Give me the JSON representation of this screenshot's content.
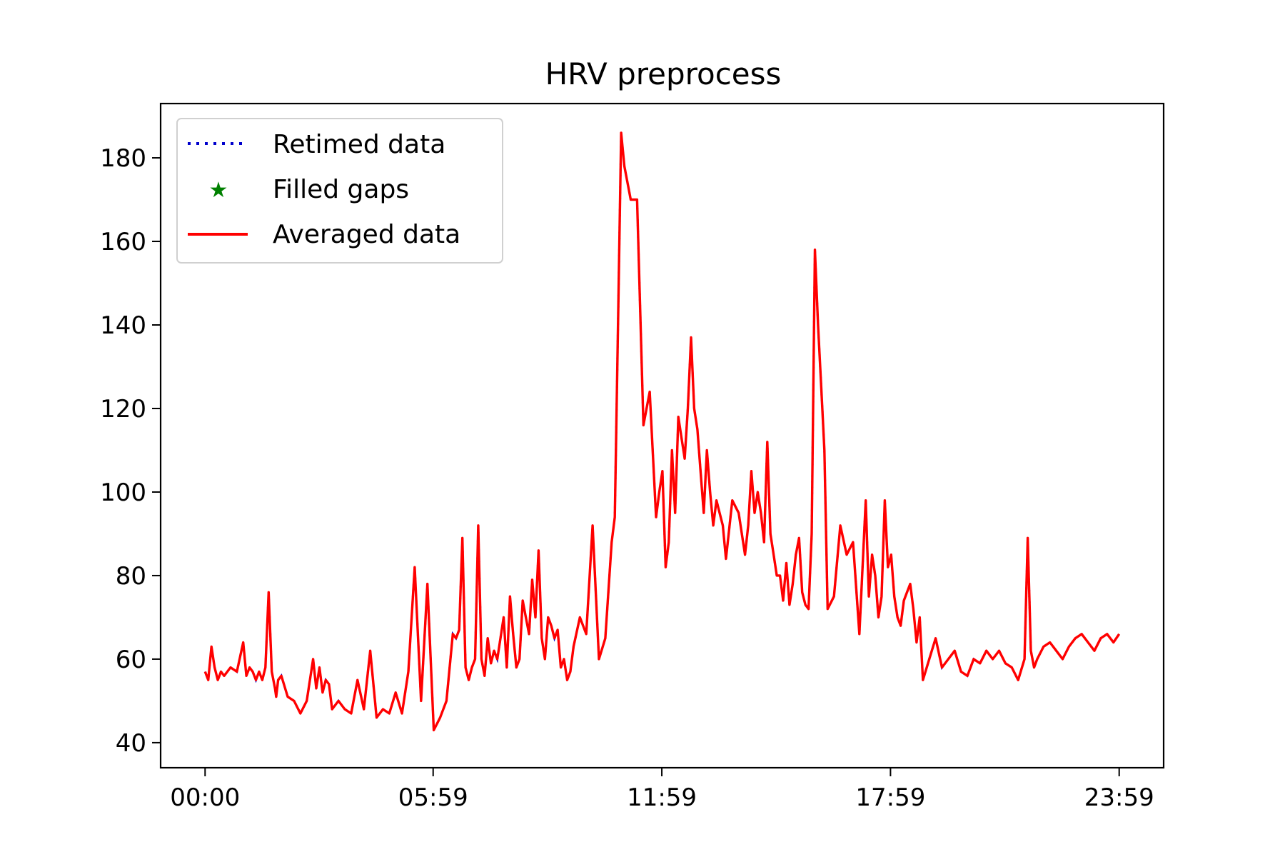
{
  "chart_data": {
    "type": "line",
    "title": "HRV preprocess",
    "xlabel": "",
    "ylabel": "",
    "x_ticks": [
      "00:00",
      "05:59",
      "11:59",
      "17:59",
      "23:59"
    ],
    "x_tick_values": [
      0,
      359,
      719,
      1079,
      1439
    ],
    "y_ticks": [
      40,
      60,
      80,
      100,
      120,
      140,
      160,
      180
    ],
    "xlim": [
      -70,
      1509
    ],
    "ylim": [
      34,
      193
    ],
    "grid": false,
    "legend_position": "upper-left",
    "colors": {
      "retimed": "#0000cc",
      "filled": "#008000",
      "averaged": "#ff0000"
    },
    "series": [
      {
        "name": "Retimed data",
        "style": "dotted",
        "values": []
      },
      {
        "name": "Filled gaps",
        "style": "star-marker",
        "values": []
      },
      {
        "name": "Averaged data",
        "style": "solid",
        "x": [
          0,
          5,
          10,
          15,
          20,
          25,
          30,
          40,
          50,
          60,
          65,
          70,
          75,
          80,
          85,
          90,
          95,
          100,
          105,
          110,
          112,
          115,
          120,
          130,
          140,
          150,
          160,
          170,
          175,
          180,
          185,
          190,
          195,
          200,
          210,
          220,
          230,
          240,
          250,
          260,
          270,
          280,
          290,
          300,
          310,
          320,
          330,
          340,
          350,
          360,
          370,
          380,
          390,
          395,
          400,
          405,
          410,
          415,
          420,
          425,
          430,
          435,
          440,
          445,
          450,
          455,
          460,
          470,
          475,
          480,
          485,
          490,
          495,
          500,
          505,
          510,
          515,
          520,
          525,
          530,
          535,
          540,
          545,
          550,
          555,
          560,
          565,
          570,
          575,
          580,
          590,
          600,
          610,
          620,
          630,
          640,
          645,
          650,
          655,
          660,
          670,
          680,
          690,
          700,
          710,
          715,
          720,
          725,
          730,
          735,
          740,
          745,
          750,
          755,
          760,
          765,
          770,
          775,
          780,
          785,
          790,
          795,
          800,
          805,
          810,
          815,
          820,
          830,
          840,
          850,
          855,
          860,
          865,
          870,
          875,
          880,
          885,
          890,
          895,
          900,
          905,
          910,
          915,
          920,
          925,
          930,
          935,
          940,
          945,
          950,
          955,
          960,
          965,
          970,
          975,
          980,
          990,
          1000,
          1010,
          1020,
          1030,
          1040,
          1045,
          1050,
          1055,
          1060,
          1065,
          1070,
          1075,
          1080,
          1085,
          1090,
          1095,
          1100,
          1105,
          1110,
          1115,
          1120,
          1125,
          1130,
          1140,
          1150,
          1160,
          1170,
          1180,
          1190,
          1200,
          1210,
          1220,
          1230,
          1240,
          1250,
          1260,
          1270,
          1280,
          1290,
          1295,
          1300,
          1305,
          1310,
          1320,
          1330,
          1340,
          1350,
          1360,
          1370,
          1380,
          1390,
          1400,
          1410,
          1420,
          1430,
          1439
        ],
        "values": [
          57,
          55,
          63,
          58,
          55,
          57,
          56,
          58,
          57,
          64,
          56,
          58,
          57,
          55,
          57,
          55,
          58,
          76,
          57,
          53,
          51,
          55,
          56,
          51,
          50,
          47,
          50,
          60,
          53,
          58,
          52,
          55,
          54,
          48,
          50,
          48,
          47,
          55,
          48,
          62,
          46,
          48,
          47,
          52,
          47,
          57,
          82,
          50,
          78,
          43,
          46,
          50,
          66,
          65,
          67,
          89,
          58,
          55,
          58,
          60,
          92,
          60,
          56,
          65,
          59,
          62,
          60,
          70,
          58,
          75,
          66,
          58,
          60,
          74,
          70,
          66,
          79,
          70,
          86,
          65,
          60,
          70,
          68,
          65,
          67,
          58,
          60,
          55,
          57,
          63,
          70,
          66,
          92,
          60,
          65,
          88,
          94,
          140,
          186,
          178,
          170,
          170,
          116,
          124,
          94,
          100,
          105,
          82,
          88,
          110,
          95,
          118,
          113,
          108,
          120,
          137,
          120,
          115,
          105,
          95,
          110,
          100,
          92,
          98,
          95,
          92,
          84,
          98,
          95,
          85,
          92,
          105,
          95,
          100,
          95,
          88,
          112,
          90,
          85,
          80,
          80,
          74,
          83,
          73,
          78,
          85,
          89,
          76,
          73,
          72,
          90,
          158,
          140,
          125,
          110,
          72,
          75,
          92,
          85,
          88,
          66,
          98,
          75,
          85,
          80,
          70,
          75,
          98,
          82,
          85,
          75,
          70,
          68,
          74,
          76,
          78,
          72,
          64,
          70,
          55,
          60,
          65,
          58,
          60,
          62,
          57,
          56,
          60,
          59,
          62,
          60,
          62,
          59,
          58,
          55,
          60,
          89,
          62,
          58,
          60,
          63,
          64,
          62,
          60,
          63,
          65,
          66,
          64,
          62,
          65,
          66,
          64,
          66
        ]
      }
    ]
  }
}
